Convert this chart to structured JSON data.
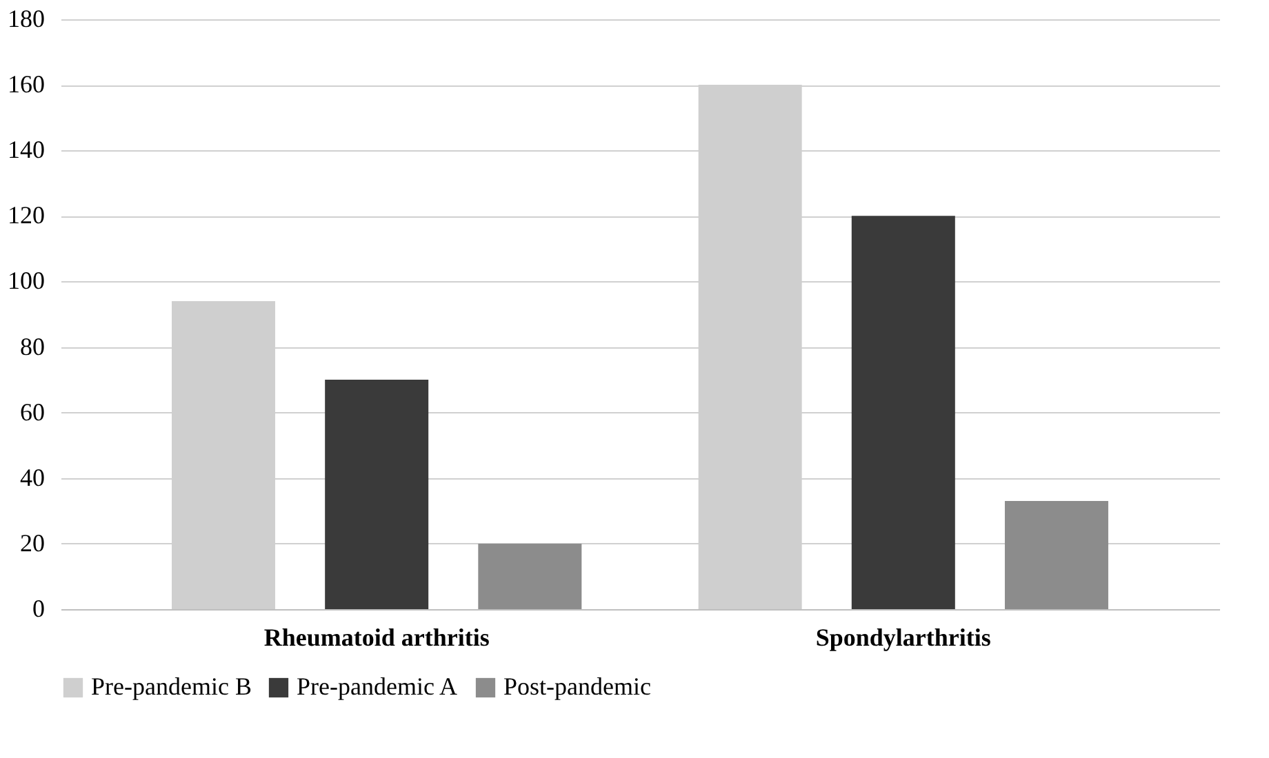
{
  "chart_data": {
    "type": "bar",
    "categories": [
      "Rheumatoid arthritis",
      "Spondylarthritis"
    ],
    "series": [
      {
        "name": "Pre-pandemic B",
        "color": "#cfcfcf",
        "values": [
          94,
          160
        ]
      },
      {
        "name": "Pre-pandemic A",
        "color": "#3a3a3a",
        "values": [
          70,
          120
        ]
      },
      {
        "name": "Post-pandemic",
        "color": "#8c8c8c",
        "values": [
          20,
          33
        ]
      }
    ],
    "ylim": [
      0,
      180
    ],
    "yticks": [
      0,
      20,
      40,
      60,
      80,
      100,
      120,
      140,
      160,
      180
    ],
    "grid": "y",
    "legend": "bottom"
  }
}
